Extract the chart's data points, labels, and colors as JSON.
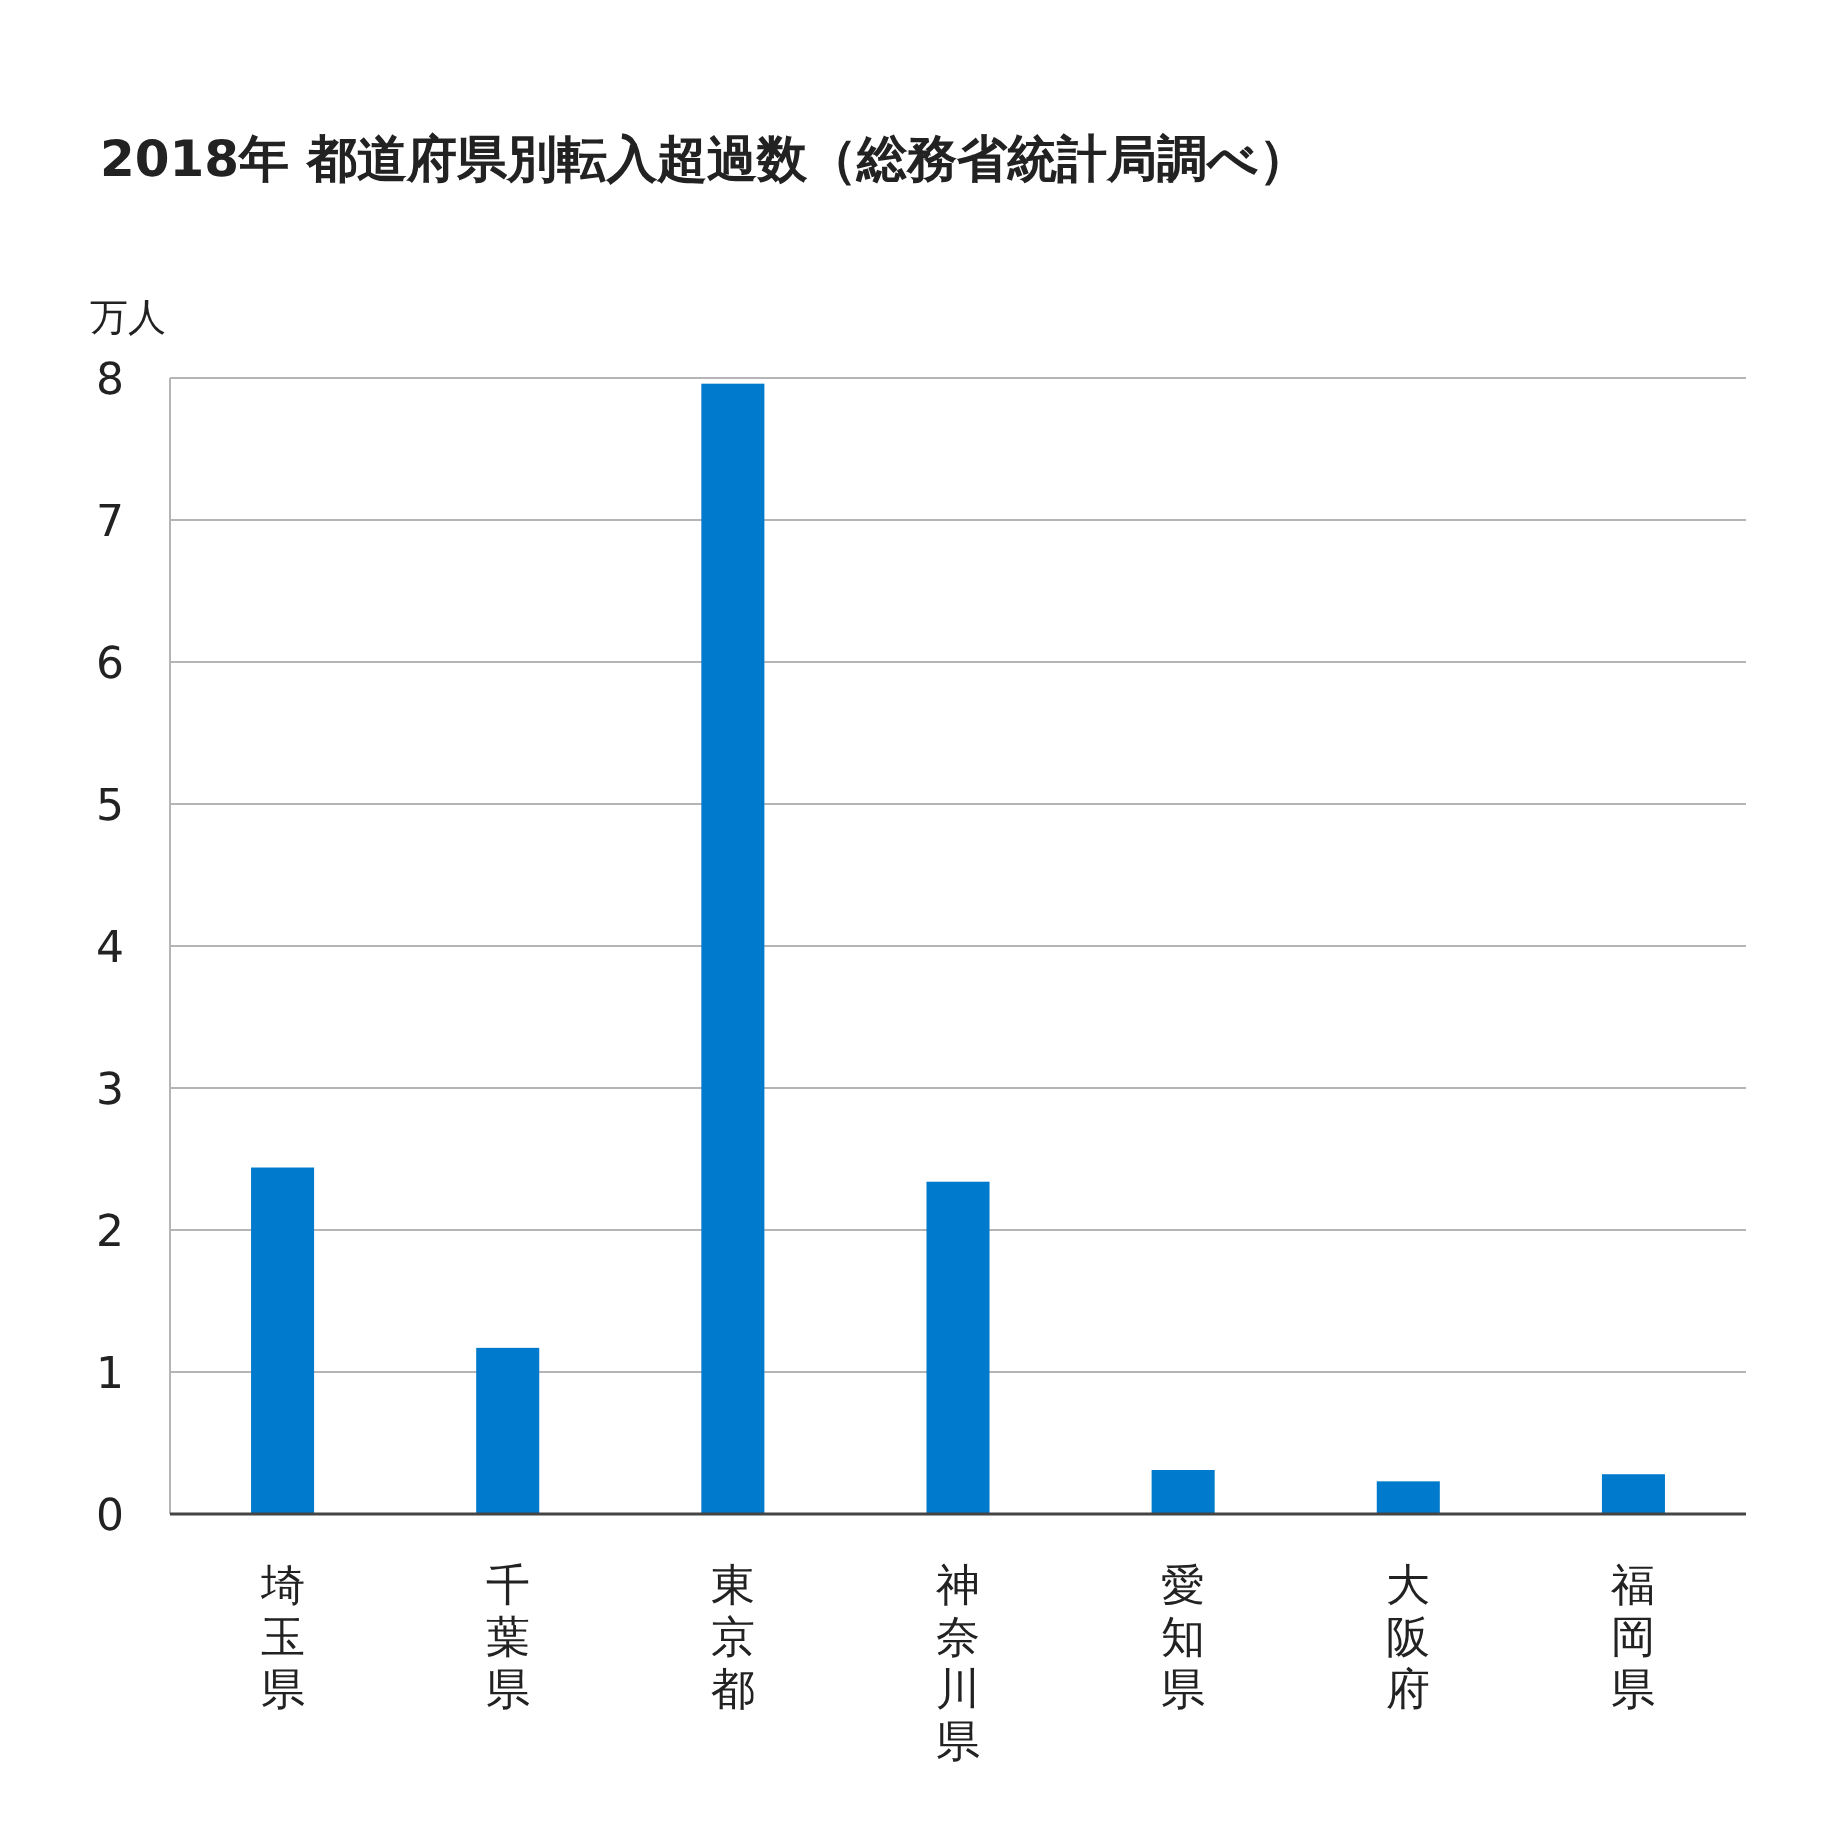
{
  "chart_data": {
    "type": "bar",
    "title": "2018年 都道府県別転入超過数（総務省統計局調べ）",
    "ylabel": "万人",
    "categories": [
      "埼玉県",
      "千葉県",
      "東京都",
      "神奈川県",
      "愛知県",
      "大阪府",
      "福岡県"
    ],
    "values": [
      2.44,
      1.17,
      7.96,
      2.34,
      0.31,
      0.23,
      0.28
    ],
    "color": "#007acc",
    "ylim": [
      0,
      8
    ],
    "yticks": [
      0,
      1,
      2,
      3,
      4,
      5,
      6,
      7,
      8
    ],
    "grid": "y"
  }
}
